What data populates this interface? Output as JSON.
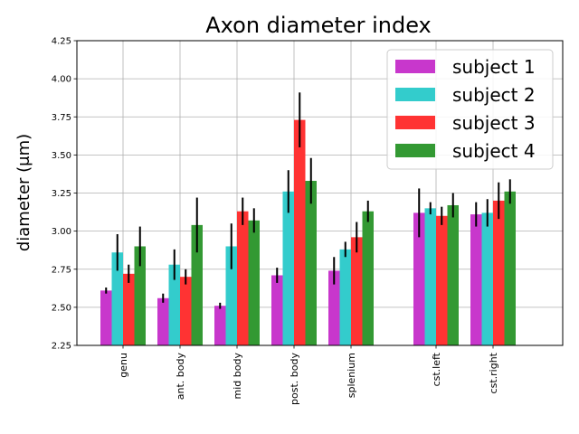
{
  "chart_data": {
    "type": "bar",
    "title": "Axon diameter index",
    "xlabel": "",
    "ylabel": "diameter (μm)",
    "ylim": [
      2.25,
      4.25
    ],
    "yticks": [
      "2.25",
      "2.50",
      "2.75",
      "3.00",
      "3.25",
      "3.50",
      "3.75",
      "4.00",
      "4.25"
    ],
    "grid": true,
    "legend_position": "top-right",
    "categories": [
      "genu",
      "ant. body",
      "mid body",
      "post. body",
      "splenium",
      "cst.left",
      "cst.right"
    ],
    "series": [
      {
        "name": "subject 1",
        "color": "#c837cc",
        "values": [
          2.61,
          2.56,
          2.51,
          2.71,
          2.74,
          3.12,
          3.11
        ],
        "errors": [
          0.02,
          0.03,
          0.02,
          0.05,
          0.09,
          0.16,
          0.08
        ]
      },
      {
        "name": "subject 2",
        "color": "#33cccc",
        "values": [
          2.86,
          2.78,
          2.9,
          3.26,
          2.88,
          3.15,
          3.12
        ],
        "errors": [
          0.12,
          0.1,
          0.15,
          0.14,
          0.05,
          0.04,
          0.09
        ]
      },
      {
        "name": "subject 3",
        "color": "#ff3333",
        "values": [
          2.72,
          2.7,
          3.13,
          3.73,
          2.96,
          3.1,
          3.2
        ],
        "errors": [
          0.06,
          0.05,
          0.09,
          0.18,
          0.1,
          0.06,
          0.12
        ]
      },
      {
        "name": "subject 4",
        "color": "#339933",
        "values": [
          2.9,
          3.04,
          3.07,
          3.33,
          3.13,
          3.17,
          3.26
        ],
        "errors": [
          0.13,
          0.18,
          0.08,
          0.15,
          0.07,
          0.08,
          0.08
        ]
      }
    ]
  }
}
